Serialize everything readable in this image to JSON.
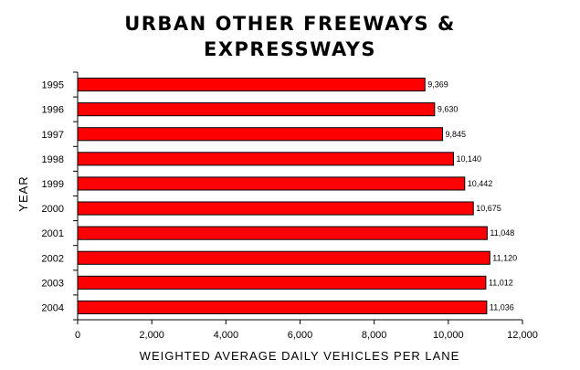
{
  "chart_data": {
    "type": "bar",
    "orientation": "horizontal",
    "title_lines": [
      "URBAN OTHER FREEWAYS &",
      "EXPRESSWAYS"
    ],
    "xlabel": "WEIGHTED AVERAGE DAILY VEHICLES PER LANE",
    "ylabel": "YEAR",
    "categories": [
      "1995",
      "1996",
      "1997",
      "1998",
      "1999",
      "2000",
      "2001",
      "2002",
      "2003",
      "2004"
    ],
    "values": [
      9369,
      9630,
      9845,
      10140,
      10442,
      10675,
      11048,
      11120,
      11012,
      11036
    ],
    "value_labels": [
      "9,369",
      "9,630",
      "9,845",
      "10,140",
      "10,442",
      "10,675",
      "11,048",
      "11,120",
      "11,012",
      "11,036"
    ],
    "xlim": [
      0,
      12000
    ],
    "xticks": [
      0,
      2000,
      4000,
      6000,
      8000,
      10000,
      12000
    ],
    "xtick_labels": [
      "0",
      "2,000",
      "4,000",
      "6,000",
      "8,000",
      "10,000",
      "12,000"
    ],
    "bar_color": "#ff0000",
    "grid": false,
    "legend": "none"
  }
}
